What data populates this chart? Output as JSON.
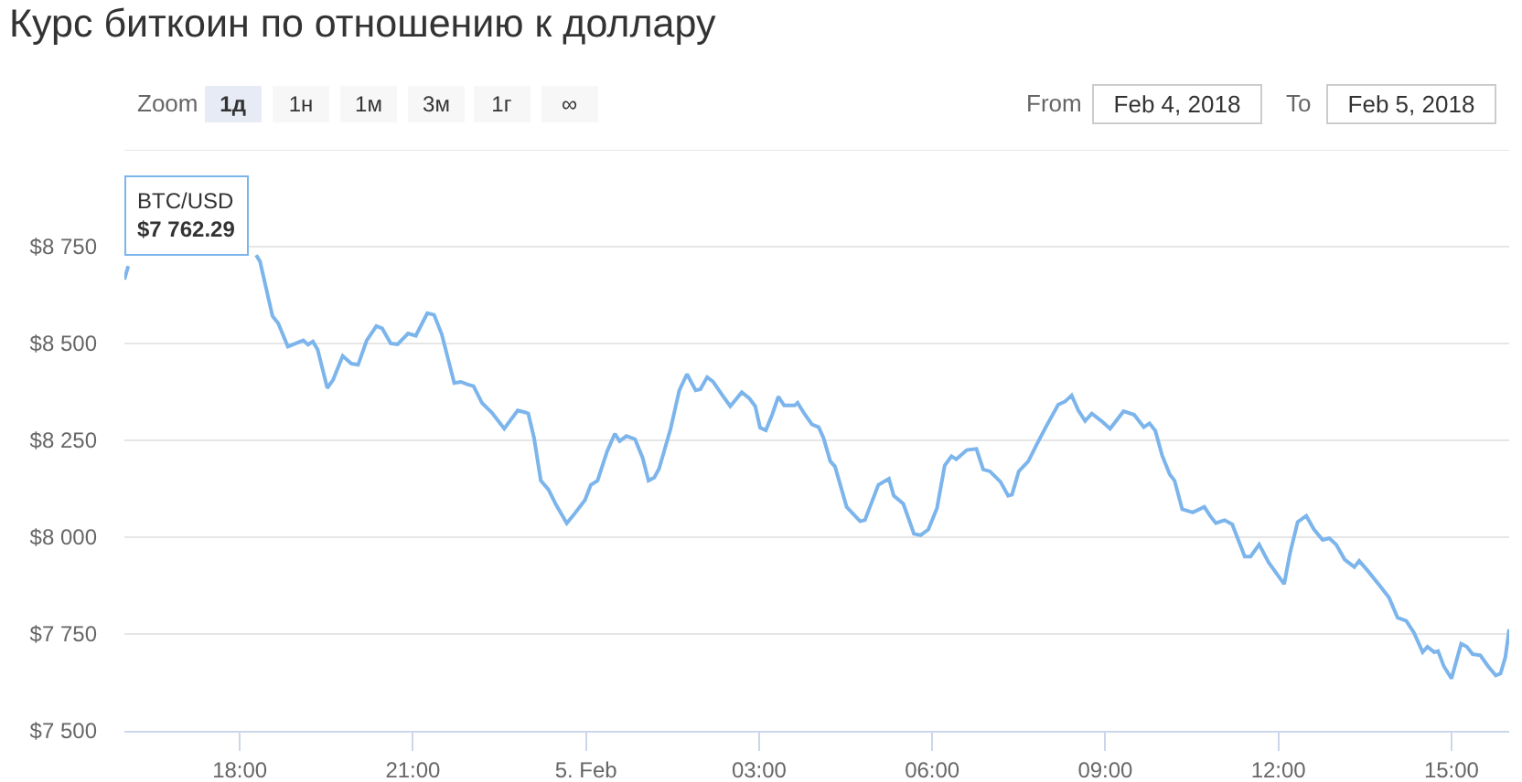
{
  "chart_data": {
    "type": "line",
    "title": "Курс биткоин по отношению к доллару",
    "annotations": [
      "BTC/USD\n$7 762.29",
      "Zoom",
      "1д",
      "1н",
      "1м",
      "3м",
      "1г",
      "∞",
      "From",
      "Feb 4, 2018",
      "To",
      "Feb 5, 2018"
    ],
    "x": [
      "2018-02-04T16:00",
      "2018-02-04T16:04",
      "2018-02-04T17:10",
      "2018-02-04T18:17",
      "2018-02-04T18:21",
      "2018-02-04T18:34",
      "2018-02-04T18:40",
      "2018-02-04T18:50",
      "2018-02-04T19:06",
      "2018-02-04T19:11",
      "2018-02-04T19:16",
      "2018-02-04T19:21",
      "2018-02-04T19:31",
      "2018-02-04T19:37",
      "2018-02-04T19:47",
      "2018-02-04T19:56",
      "2018-02-04T20:03",
      "2018-02-04T20:12",
      "2018-02-04T20:22",
      "2018-02-04T20:28",
      "2018-02-04T20:37",
      "2018-02-04T20:44",
      "2018-02-04T20:55",
      "2018-02-04T21:03",
      "2018-02-04T21:15",
      "2018-02-04T21:22",
      "2018-02-04T21:30",
      "2018-02-04T21:43",
      "2018-02-04T21:50",
      "2018-02-04T21:57",
      "2018-02-04T22:03",
      "2018-02-04T22:12",
      "2018-02-04T22:22",
      "2018-02-04T22:35",
      "2018-02-04T22:49",
      "2018-02-04T22:57",
      "2018-02-04T23:00",
      "2018-02-04T23:06",
      "2018-02-04T23:13",
      "2018-02-04T23:21",
      "2018-02-04T23:29",
      "2018-02-04T23:40",
      "2018-02-04T23:47",
      "2018-02-04T23:59",
      "2018-02-05T00:05",
      "2018-02-05T00:12",
      "2018-02-05T00:22",
      "2018-02-05T00:30",
      "2018-02-05T00:35",
      "2018-02-05T00:42",
      "2018-02-05T00:51",
      "2018-02-05T00:59",
      "2018-02-05T01:05",
      "2018-02-05T01:11",
      "2018-02-05T01:16",
      "2018-02-05T01:28",
      "2018-02-05T01:37",
      "2018-02-05T01:45",
      "2018-02-05T01:54",
      "2018-02-05T01:59",
      "2018-02-05T02:06",
      "2018-02-05T02:12",
      "2018-02-05T02:22",
      "2018-02-05T02:30",
      "2018-02-05T02:42",
      "2018-02-05T02:50",
      "2018-02-05T02:56",
      "2018-02-05T03:01",
      "2018-02-05T03:07",
      "2018-02-05T03:14",
      "2018-02-05T03:20",
      "2018-02-05T03:26",
      "2018-02-05T03:37",
      "2018-02-05T03:40",
      "2018-02-05T03:47",
      "2018-02-05T03:55",
      "2018-02-05T04:02",
      "2018-02-05T04:07",
      "2018-02-05T04:14",
      "2018-02-05T04:19",
      "2018-02-05T04:31",
      "2018-02-05T04:45",
      "2018-02-05T04:50",
      "2018-02-05T05:04",
      "2018-02-05T05:15",
      "2018-02-05T05:20",
      "2018-02-05T05:30",
      "2018-02-05T05:41",
      "2018-02-05T05:48",
      "2018-02-05T05:56",
      "2018-02-05T06:05",
      "2018-02-05T06:13",
      "2018-02-05T06:20",
      "2018-02-05T06:25",
      "2018-02-05T06:36",
      "2018-02-05T06:46",
      "2018-02-05T06:53",
      "2018-02-05T07:00",
      "2018-02-05T07:11",
      "2018-02-05T07:19",
      "2018-02-05T07:23",
      "2018-02-05T07:30",
      "2018-02-05T07:40",
      "2018-02-05T07:49",
      "2018-02-05T07:59",
      "2018-02-05T08:11",
      "2018-02-05T08:18",
      "2018-02-05T08:25",
      "2018-02-05T08:32",
      "2018-02-05T08:39",
      "2018-02-05T08:46",
      "2018-02-05T08:56",
      "2018-02-05T09:05",
      "2018-02-05T09:19",
      "2018-02-05T09:30",
      "2018-02-05T09:40",
      "2018-02-05T09:46",
      "2018-02-05T09:52",
      "2018-02-05T09:59",
      "2018-02-05T10:07",
      "2018-02-05T10:12",
      "2018-02-05T10:20",
      "2018-02-05T10:31",
      "2018-02-05T10:43",
      "2018-02-05T10:49",
      "2018-02-05T10:55",
      "2018-02-05T11:04",
      "2018-02-05T11:12",
      "2018-02-05T11:25",
      "2018-02-05T11:31",
      "2018-02-05T11:40",
      "2018-02-05T11:50",
      "2018-02-05T12:06",
      "2018-02-05T12:12",
      "2018-02-05T12:20",
      "2018-02-05T12:29",
      "2018-02-05T12:37",
      "2018-02-05T12:46",
      "2018-02-05T12:53",
      "2018-02-05T13:00",
      "2018-02-05T13:09",
      "2018-02-05T13:19",
      "2018-02-05T13:24",
      "2018-02-05T13:33",
      "2018-02-05T13:44",
      "2018-02-05T13:55",
      "2018-02-05T14:04",
      "2018-02-05T14:13",
      "2018-02-05T14:21",
      "2018-02-05T14:30",
      "2018-02-05T14:35",
      "2018-02-05T14:42",
      "2018-02-05T14:46",
      "2018-02-05T14:52",
      "2018-02-05T15:00",
      "2018-02-05T15:10",
      "2018-02-05T15:16",
      "2018-02-05T15:22",
      "2018-02-05T15:30",
      "2018-02-05T15:38",
      "2018-02-05T15:46",
      "2018-02-05T15:51",
      "2018-02-05T15:56",
      "2018-02-05T16:00"
    ],
    "series": [
      {
        "color": "#7cb5ec",
        "values": [
          8665,
          8700,
          null,
          8728,
          8712,
          8571,
          8552,
          8492,
          8508,
          8497,
          8505,
          8484,
          8385,
          8406,
          8468,
          8448,
          8445,
          8508,
          8545,
          8539,
          8500,
          8498,
          8526,
          8520,
          8578,
          8574,
          8524,
          8398,
          8401,
          8394,
          8390,
          8346,
          8322,
          8280,
          8327,
          8322,
          8319,
          8256,
          8146,
          8123,
          8083,
          8036,
          8057,
          8096,
          8135,
          8146,
          8222,
          8267,
          8248,
          8261,
          8253,
          8204,
          8146,
          8154,
          8177,
          8280,
          8379,
          8421,
          8379,
          8382,
          8413,
          8402,
          8366,
          8338,
          8374,
          8358,
          8338,
          8283,
          8276,
          8319,
          8363,
          8340,
          8340,
          8347,
          8319,
          8291,
          8284,
          8256,
          8196,
          8182,
          8078,
          8041,
          8044,
          8135,
          8151,
          8107,
          8086,
          8009,
          8005,
          8020,
          8075,
          8185,
          8209,
          8201,
          8225,
          8228,
          8175,
          8170,
          8143,
          8107,
          8110,
          8170,
          8196,
          8241,
          8288,
          8342,
          8350,
          8366,
          8327,
          8300,
          8319,
          8300,
          8280,
          8325,
          8316,
          8284,
          8294,
          8275,
          8212,
          8162,
          8146,
          8072,
          8064,
          8078,
          8055,
          8036,
          8044,
          8033,
          7950,
          7950,
          7981,
          7934,
          7879,
          7958,
          8039,
          8055,
          8020,
          7993,
          7997,
          7981,
          7942,
          7923,
          7939,
          7913,
          7879,
          7844,
          7792,
          7784,
          7753,
          7703,
          7717,
          7703,
          7706,
          7667,
          7635,
          7725,
          7717,
          7698,
          7695,
          7667,
          7643,
          7648,
          7690,
          7762.29
        ]
      }
    ],
    "xlim": [
      "2018-02-04T16:00",
      "2018-02-05T16:00"
    ],
    "xticks": [
      {
        "value": "2018-02-04T18:00",
        "label": "18:00"
      },
      {
        "value": "2018-02-04T21:00",
        "label": "21:00"
      },
      {
        "value": "2018-02-05T00:00",
        "label": "5. Feb"
      },
      {
        "value": "2018-02-05T03:00",
        "label": "03:00"
      },
      {
        "value": "2018-02-05T06:00",
        "label": "06:00"
      },
      {
        "value": "2018-02-05T09:00",
        "label": "09:00"
      },
      {
        "value": "2018-02-05T12:00",
        "label": "12:00"
      },
      {
        "value": "2018-02-05T15:00",
        "label": "15:00"
      }
    ],
    "ylim": [
      7500,
      9000
    ],
    "yticks": [
      {
        "value": 7500,
        "label": "$7 500"
      },
      {
        "value": 7750,
        "label": "$7 750"
      },
      {
        "value": 8000,
        "label": "$8 000"
      },
      {
        "value": 8250,
        "label": "$8 250"
      },
      {
        "value": 8500,
        "label": "$8 500"
      },
      {
        "value": 8750,
        "label": "$8 750"
      },
      {
        "value": 9000,
        "label": null
      }
    ],
    "grid": "y"
  }
}
